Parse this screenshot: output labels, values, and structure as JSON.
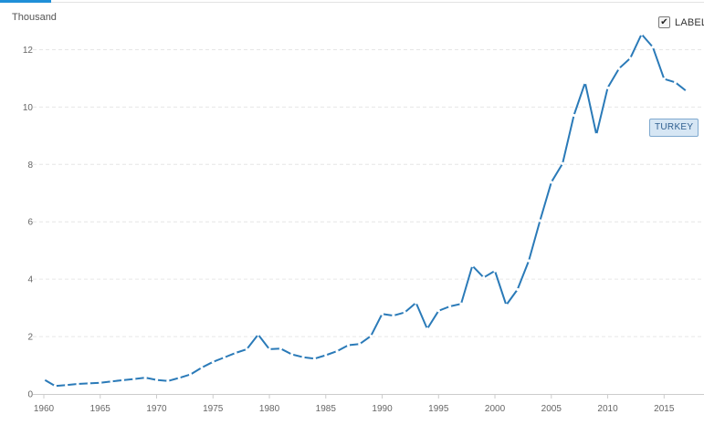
{
  "header": {
    "unit_label": "Thousand",
    "label_toggle": {
      "text": "LABEL",
      "checked": true,
      "check_glyph": "✔"
    }
  },
  "colors": {
    "line": "#2a7ab8",
    "grid": "#e6e6e6",
    "axis": "#cccccc",
    "tag_bg": "#d6e6f4",
    "tag_border": "#7fa9cf"
  },
  "chart_data": {
    "type": "line",
    "title": "",
    "xlabel": "",
    "ylabel": "Thousand",
    "xlim": [
      1960,
      2017
    ],
    "ylim": [
      0,
      13
    ],
    "x_ticks": [
      1960,
      1965,
      1970,
      1975,
      1980,
      1985,
      1990,
      1995,
      2000,
      2005,
      2010,
      2015
    ],
    "y_ticks": [
      0,
      2,
      4,
      6,
      8,
      10,
      12
    ],
    "grid": "horizontal dashed",
    "series": [
      {
        "name": "TURKEY",
        "x": [
          1960,
          1961,
          1962,
          1963,
          1964,
          1965,
          1966,
          1967,
          1968,
          1969,
          1970,
          1971,
          1972,
          1973,
          1974,
          1975,
          1976,
          1977,
          1978,
          1979,
          1980,
          1981,
          1982,
          1983,
          1984,
          1985,
          1986,
          1987,
          1988,
          1989,
          1990,
          1991,
          1992,
          1993,
          1994,
          1995,
          1996,
          1997,
          1998,
          1999,
          2000,
          2001,
          2002,
          2003,
          2004,
          2005,
          2006,
          2007,
          2008,
          2009,
          2010,
          2011,
          2012,
          2013,
          2014,
          2015,
          2016,
          2017
        ],
        "values": [
          0.51,
          0.28,
          0.31,
          0.35,
          0.37,
          0.39,
          0.44,
          0.48,
          0.52,
          0.57,
          0.49,
          0.45,
          0.56,
          0.68,
          0.92,
          1.12,
          1.27,
          1.43,
          1.56,
          2.07,
          1.56,
          1.58,
          1.38,
          1.28,
          1.23,
          1.35,
          1.49,
          1.7,
          1.74,
          2.02,
          2.79,
          2.73,
          2.84,
          3.18,
          2.27,
          2.9,
          3.05,
          3.14,
          4.47,
          4.06,
          4.29,
          3.1,
          3.64,
          4.64,
          6.04,
          7.38,
          8.03,
          9.71,
          10.85,
          9.04,
          10.67,
          11.34,
          11.7,
          12.54,
          12.09,
          10.98,
          10.86,
          10.55
        ]
      }
    ]
  }
}
